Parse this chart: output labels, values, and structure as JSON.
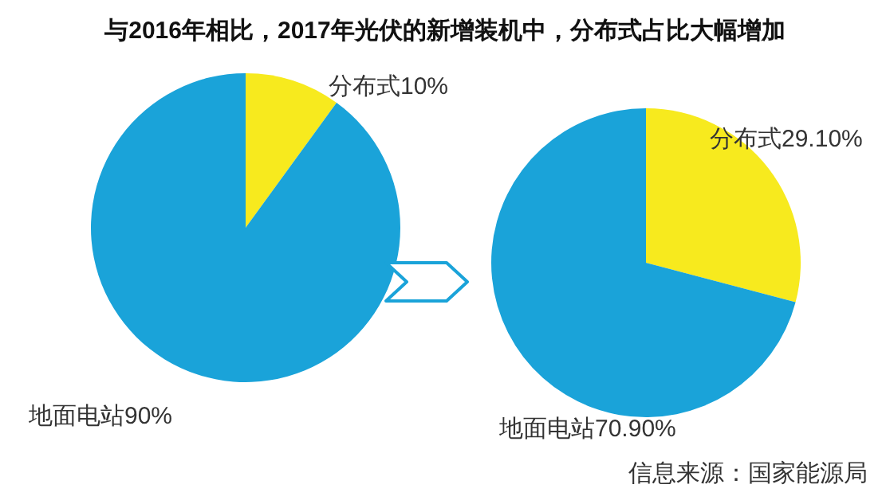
{
  "chart_data": [
    {
      "type": "pie",
      "title": "与2016年相比，2017年光伏的新增装机中，分布式占比大幅增加",
      "categories": [
        "分布式",
        "地面电站"
      ],
      "values": [
        10,
        90
      ],
      "colors": [
        "#f7ea1e",
        "#1aa3d9"
      ],
      "value_labels": [
        "10%",
        "90%"
      ]
    },
    {
      "type": "pie",
      "categories": [
        "分布式",
        "地面电站"
      ],
      "values": [
        29.1,
        70.9
      ],
      "colors": [
        "#f7ea1e",
        "#1aa3d9"
      ],
      "value_labels": [
        "29.10%",
        "70.90%"
      ],
      "annotations": [
        "信息来源：国家能源局"
      ]
    }
  ]
}
